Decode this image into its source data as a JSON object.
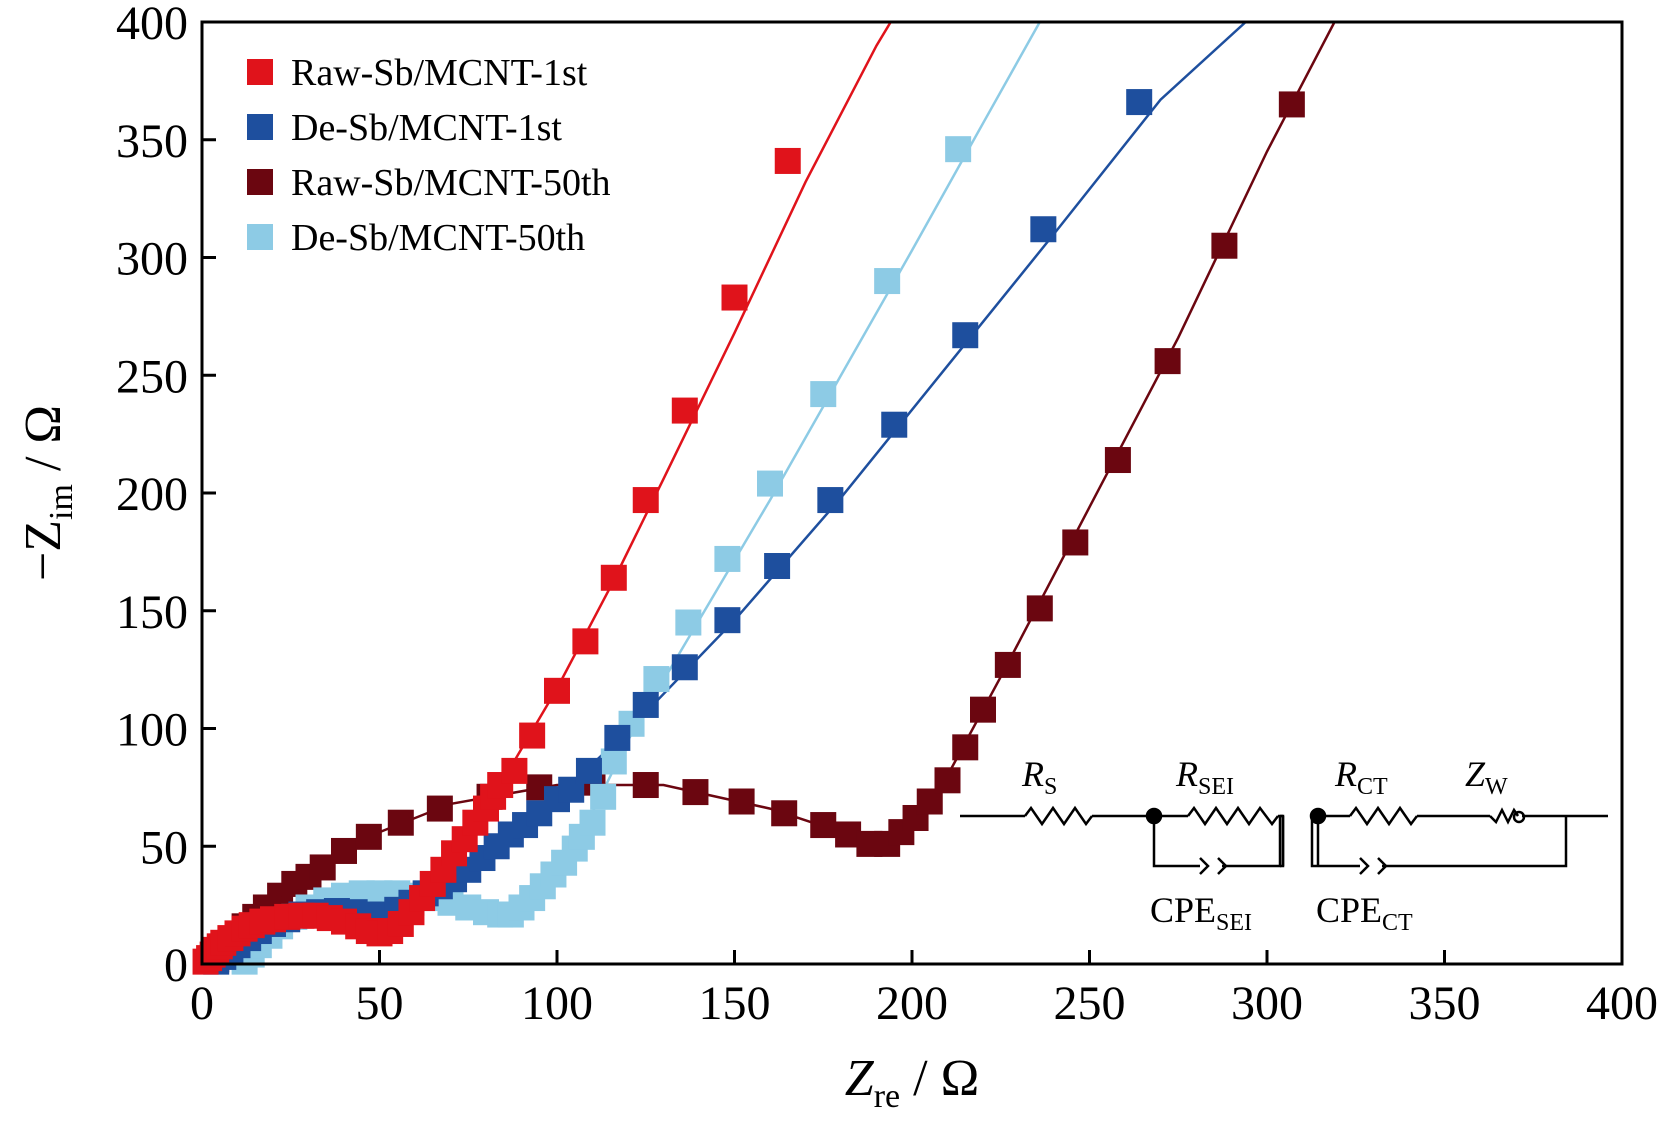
{
  "chart_data": {
    "type": "scatter",
    "xlim": [
      0,
      400
    ],
    "ylim": [
      0,
      400
    ],
    "x_ticks": [
      0,
      50,
      100,
      150,
      200,
      250,
      300,
      350,
      400
    ],
    "y_ticks": [
      0,
      50,
      100,
      150,
      200,
      250,
      300,
      350,
      400
    ],
    "x_tick_labels": [
      "0",
      "50",
      "100",
      "150",
      "200",
      "250",
      "300",
      "350",
      "400"
    ],
    "y_tick_labels": [
      "0",
      "50",
      "100",
      "150",
      "200",
      "250",
      "300",
      "350",
      "400"
    ],
    "xlabel": {
      "main": "Z",
      "sub": "re",
      "unit": " / Ω"
    },
    "ylabel": {
      "main": "−Z",
      "sub": "im",
      "unit": " / Ω"
    },
    "grid": false,
    "legend_position": "top-left",
    "series": [
      {
        "name": "Raw-Sb/MCNT-1st",
        "color": "#e0131b",
        "points": [
          [
            1,
            1
          ],
          [
            2,
            2.5
          ],
          [
            3,
            4
          ],
          [
            4,
            6
          ],
          [
            5,
            7.5
          ],
          [
            6,
            9
          ],
          [
            8,
            11
          ],
          [
            10,
            13
          ],
          [
            12,
            15
          ],
          [
            14,
            16.5
          ],
          [
            17,
            18
          ],
          [
            20,
            19
          ],
          [
            24,
            20
          ],
          [
            28,
            20.5
          ],
          [
            32,
            20.5
          ],
          [
            36,
            19.5
          ],
          [
            40,
            18
          ],
          [
            44,
            16
          ],
          [
            47,
            14
          ],
          [
            50,
            13
          ],
          [
            53,
            14
          ],
          [
            56,
            17
          ],
          [
            59,
            22
          ],
          [
            62,
            28
          ],
          [
            65,
            34
          ],
          [
            68,
            40
          ],
          [
            71,
            47
          ],
          [
            74,
            53
          ],
          [
            77,
            60
          ],
          [
            80,
            66
          ],
          [
            82,
            71
          ],
          [
            84,
            76
          ],
          [
            88,
            82
          ],
          [
            93,
            97
          ],
          [
            100,
            116
          ],
          [
            108,
            137
          ],
          [
            116,
            164
          ],
          [
            125,
            197
          ],
          [
            136,
            235
          ],
          [
            150,
            283
          ],
          [
            165,
            341
          ]
        ],
        "fit": [
          [
            84,
            76
          ],
          [
            100,
            117
          ],
          [
            115,
            160
          ],
          [
            130,
            206
          ],
          [
            150,
            268
          ],
          [
            170,
            332
          ],
          [
            190,
            390
          ],
          [
            194,
            400
          ]
        ]
      },
      {
        "name": "De-Sb/MCNT-1st",
        "color": "#1e4f9e",
        "points": [
          [
            4,
            1
          ],
          [
            6,
            3
          ],
          [
            8,
            5
          ],
          [
            10,
            8
          ],
          [
            13,
            11
          ],
          [
            16,
            14
          ],
          [
            20,
            17
          ],
          [
            24,
            19
          ],
          [
            28,
            21
          ],
          [
            33,
            22
          ],
          [
            38,
            22.5
          ],
          [
            43,
            22
          ],
          [
            47,
            21
          ],
          [
            51,
            21
          ],
          [
            55,
            23
          ],
          [
            59,
            26
          ],
          [
            63,
            30
          ],
          [
            67,
            33
          ],
          [
            71,
            36
          ],
          [
            75,
            40
          ],
          [
            79,
            45
          ],
          [
            83,
            50
          ],
          [
            87,
            55
          ],
          [
            91,
            59
          ],
          [
            95,
            64
          ],
          [
            100,
            70
          ],
          [
            104,
            74
          ],
          [
            109,
            82
          ],
          [
            117,
            96
          ],
          [
            125,
            110
          ],
          [
            136,
            126
          ],
          [
            148,
            146
          ],
          [
            162,
            169
          ],
          [
            177,
            197
          ],
          [
            195,
            229
          ],
          [
            215,
            267
          ],
          [
            237,
            312
          ],
          [
            264,
            366
          ]
        ],
        "fit": [
          [
            95,
            64
          ],
          [
            120,
            99
          ],
          [
            150,
            146
          ],
          [
            180,
            198
          ],
          [
            210,
            254
          ],
          [
            240,
            310
          ],
          [
            270,
            367
          ],
          [
            294,
            400
          ]
        ]
      },
      {
        "name": "Raw-Sb/MCNT-50th",
        "color": "#6b0610",
        "points": [
          [
            4,
            2
          ],
          [
            5,
            4
          ],
          [
            6,
            6
          ],
          [
            8,
            9
          ],
          [
            10,
            12
          ],
          [
            12,
            16
          ],
          [
            15,
            20
          ],
          [
            18,
            24
          ],
          [
            22,
            29
          ],
          [
            26,
            34
          ],
          [
            30,
            37
          ],
          [
            34,
            41
          ],
          [
            40,
            48
          ],
          [
            47,
            54
          ],
          [
            56,
            60
          ],
          [
            67,
            66
          ],
          [
            81,
            71
          ],
          [
            95,
            75
          ],
          [
            110,
            77
          ],
          [
            125,
            76
          ],
          [
            139,
            73
          ],
          [
            152,
            69
          ],
          [
            164,
            64
          ],
          [
            175,
            59
          ],
          [
            182,
            55
          ],
          [
            188,
            51
          ],
          [
            193,
            51
          ],
          [
            197,
            56
          ],
          [
            201,
            62
          ],
          [
            205,
            69
          ],
          [
            210,
            78
          ],
          [
            215,
            92
          ],
          [
            220,
            108
          ],
          [
            227,
            127
          ],
          [
            236,
            151
          ],
          [
            246,
            179
          ],
          [
            258,
            214
          ],
          [
            272,
            256
          ],
          [
            288,
            305
          ],
          [
            307,
            365
          ]
        ],
        "fit": [
          [
            8,
            10
          ],
          [
            20,
            26
          ],
          [
            40,
            50
          ],
          [
            70,
            68
          ],
          [
            100,
            76
          ],
          [
            130,
            76
          ],
          [
            160,
            66
          ],
          [
            180,
            56
          ],
          [
            190,
            50
          ],
          [
            200,
            58
          ],
          [
            210,
            80
          ],
          [
            225,
            122
          ],
          [
            250,
            194
          ],
          [
            275,
            266
          ],
          [
            300,
            345
          ],
          [
            319,
            400
          ]
        ]
      },
      {
        "name": "De-Sb/MCNT-50th",
        "color": "#8dcbe5",
        "points": [
          [
            12,
            1
          ],
          [
            14,
            4
          ],
          [
            16,
            8
          ],
          [
            19,
            12
          ],
          [
            22,
            16
          ],
          [
            26,
            20
          ],
          [
            30,
            24
          ],
          [
            35,
            27
          ],
          [
            40,
            29
          ],
          [
            45,
            30
          ],
          [
            50,
            30
          ],
          [
            55,
            30
          ],
          [
            60,
            29
          ],
          [
            65,
            28
          ],
          [
            70,
            26
          ],
          [
            75,
            24
          ],
          [
            80,
            22
          ],
          [
            84,
            21
          ],
          [
            87,
            21
          ],
          [
            90,
            24
          ],
          [
            93,
            28
          ],
          [
            96,
            33
          ],
          [
            99,
            38
          ],
          [
            102,
            43
          ],
          [
            105,
            49
          ],
          [
            107,
            54
          ],
          [
            110,
            60
          ],
          [
            113,
            71
          ],
          [
            116,
            86
          ],
          [
            121,
            102
          ],
          [
            128,
            121
          ],
          [
            137,
            145
          ],
          [
            148,
            172
          ],
          [
            160,
            204
          ],
          [
            175,
            242
          ],
          [
            193,
            290
          ],
          [
            213,
            346
          ]
        ],
        "fit": [
          [
            104,
            46
          ],
          [
            120,
            95
          ],
          [
            140,
            146
          ],
          [
            160,
            197
          ],
          [
            180,
            250
          ],
          [
            200,
            303
          ],
          [
            220,
            357
          ],
          [
            236,
            400
          ]
        ]
      }
    ],
    "circuit": {
      "labels": [
        {
          "main": "R",
          "sub": "S"
        },
        {
          "main": "R",
          "sub": "SEI"
        },
        {
          "main": "R",
          "sub": "CT"
        },
        {
          "main": "Z",
          "sub": "W"
        },
        {
          "main": "CPE",
          "sub": "SEI"
        },
        {
          "main": "CPE",
          "sub": "CT"
        }
      ]
    }
  }
}
